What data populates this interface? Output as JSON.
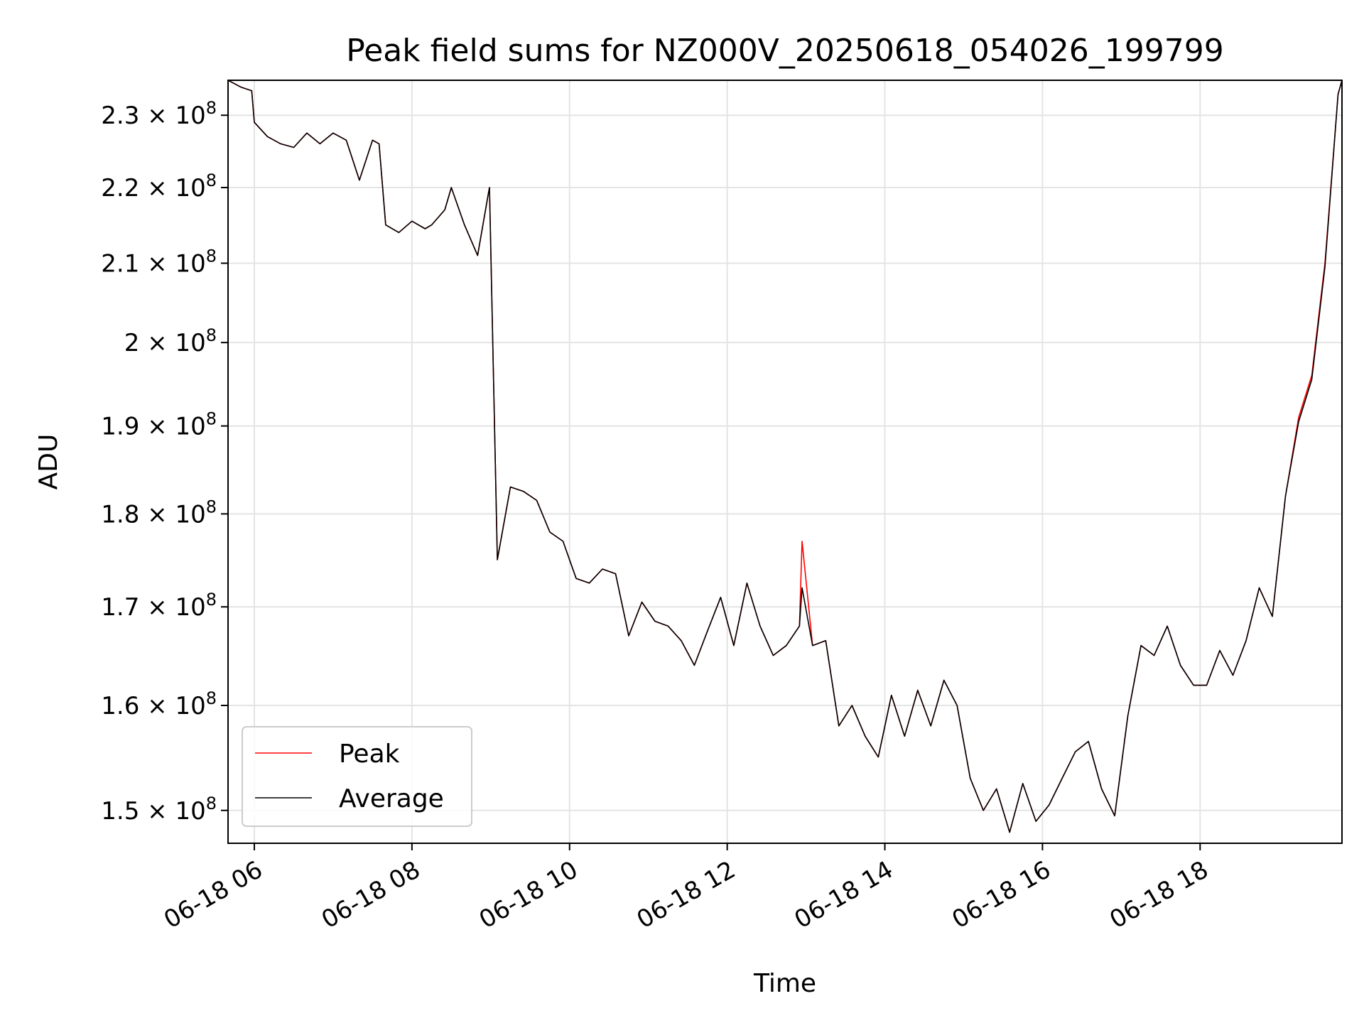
{
  "chart_data": {
    "type": "line",
    "title": "Peak field sums for NZ000V_20250618_054026_199799",
    "xlabel": "Time",
    "ylabel": "ADU",
    "x_scale": "time",
    "y_scale": "log",
    "xlim": [
      "06-18 05:40",
      "06-18 19:48"
    ],
    "ylim": [
      147000000,
      235000000
    ],
    "x_ticks": [
      {
        "value": "06-18 06:00",
        "label": "06-18 06"
      },
      {
        "value": "06-18 08:00",
        "label": "06-18 08"
      },
      {
        "value": "06-18 10:00",
        "label": "06-18 10"
      },
      {
        "value": "06-18 12:00",
        "label": "06-18 12"
      },
      {
        "value": "06-18 14:00",
        "label": "06-18 14"
      },
      {
        "value": "06-18 16:00",
        "label": "06-18 16"
      },
      {
        "value": "06-18 18:00",
        "label": "06-18 18"
      }
    ],
    "y_ticks": [
      {
        "value": 150000000,
        "mantissa": "1.5",
        "exp": "8"
      },
      {
        "value": 160000000,
        "mantissa": "1.6",
        "exp": "8"
      },
      {
        "value": 170000000,
        "mantissa": "1.7",
        "exp": "8"
      },
      {
        "value": 180000000,
        "mantissa": "1.8",
        "exp": "8"
      },
      {
        "value": 190000000,
        "mantissa": "1.9",
        "exp": "8"
      },
      {
        "value": 200000000,
        "mantissa": "2",
        "exp": "8"
      },
      {
        "value": 210000000,
        "mantissa": "2.1",
        "exp": "8"
      },
      {
        "value": 220000000,
        "mantissa": "2.2",
        "exp": "8"
      },
      {
        "value": 230000000,
        "mantissa": "2.3",
        "exp": "8"
      }
    ],
    "y_tick_base": "10",
    "y_tick_times": "×",
    "grid": true,
    "legend_position": "lower-left",
    "series": [
      {
        "name": "Peak",
        "color": "#ff0000",
        "x": [
          "06-18 05:40",
          "06-18 05:50",
          "06-18 05:58",
          "06-18 06:00",
          "06-18 06:10",
          "06-18 06:20",
          "06-18 06:30",
          "06-18 06:40",
          "06-18 06:50",
          "06-18 07:00",
          "06-18 07:10",
          "06-18 07:20",
          "06-18 07:30",
          "06-18 07:35",
          "06-18 07:40",
          "06-18 07:50",
          "06-18 08:00",
          "06-18 08:10",
          "06-18 08:15",
          "06-18 08:25",
          "06-18 08:30",
          "06-18 08:40",
          "06-18 08:50",
          "06-18 08:58",
          "06-18 08:59",
          "06-18 09:05",
          "06-18 09:15",
          "06-18 09:25",
          "06-18 09:35",
          "06-18 09:45",
          "06-18 09:55",
          "06-18 10:05",
          "06-18 10:15",
          "06-18 10:25",
          "06-18 10:35",
          "06-18 10:45",
          "06-18 10:55",
          "06-18 11:05",
          "06-18 11:15",
          "06-18 11:25",
          "06-18 11:35",
          "06-18 11:45",
          "06-18 11:55",
          "06-18 12:05",
          "06-18 12:15",
          "06-18 12:25",
          "06-18 12:35",
          "06-18 12:45",
          "06-18 12:55",
          "06-18 12:57",
          "06-18 13:05",
          "06-18 13:15",
          "06-18 13:25",
          "06-18 13:35",
          "06-18 13:45",
          "06-18 13:55",
          "06-18 14:05",
          "06-18 14:15",
          "06-18 14:25",
          "06-18 14:35",
          "06-18 14:45",
          "06-18 14:55",
          "06-18 15:05",
          "06-18 15:15",
          "06-18 15:25",
          "06-18 15:35",
          "06-18 15:45",
          "06-18 15:55",
          "06-18 16:05",
          "06-18 16:15",
          "06-18 16:25",
          "06-18 16:35",
          "06-18 16:45",
          "06-18 16:55",
          "06-18 17:05",
          "06-18 17:15",
          "06-18 17:25",
          "06-18 17:35",
          "06-18 17:45",
          "06-18 17:55",
          "06-18 18:05",
          "06-18 18:15",
          "06-18 18:25",
          "06-18 18:35",
          "06-18 18:45",
          "06-18 18:55",
          "06-18 19:05",
          "06-18 19:15",
          "06-18 19:25",
          "06-18 19:35",
          "06-18 19:45",
          "06-18 19:48"
        ],
        "y": [
          235000000,
          234000000,
          233500000,
          229000000,
          227000000,
          226000000,
          225500000,
          227500000,
          226000000,
          227500000,
          226500000,
          221000000,
          226500000,
          226000000,
          215000000,
          214000000,
          215500000,
          214500000,
          215000000,
          217000000,
          220000000,
          215000000,
          211000000,
          219000000,
          220000000,
          175000000,
          183000000,
          182500000,
          181500000,
          178000000,
          177000000,
          173000000,
          172500000,
          174000000,
          173500000,
          167000000,
          170500000,
          168500000,
          168000000,
          166500000,
          164000000,
          167500000,
          171000000,
          166000000,
          172500000,
          168000000,
          165000000,
          166000000,
          168000000,
          177000000,
          166000000,
          166500000,
          158000000,
          160000000,
          157000000,
          155000000,
          161000000,
          157000000,
          161500000,
          158000000,
          162500000,
          160000000,
          153000000,
          150000000,
          152000000,
          148000000,
          152500000,
          149000000,
          150500000,
          153000000,
          155500000,
          156500000,
          152000000,
          149500000,
          159000000,
          166000000,
          165000000,
          168000000,
          164000000,
          162000000,
          162000000,
          165500000,
          163000000,
          166500000,
          172000000,
          169000000,
          182000000,
          191000000,
          196000000,
          210000000,
          233000000,
          235000000
        ]
      },
      {
        "name": "Average",
        "color": "#000000",
        "x": [
          "06-18 05:40",
          "06-18 05:50",
          "06-18 05:58",
          "06-18 06:00",
          "06-18 06:10",
          "06-18 06:20",
          "06-18 06:30",
          "06-18 06:40",
          "06-18 06:50",
          "06-18 07:00",
          "06-18 07:10",
          "06-18 07:20",
          "06-18 07:30",
          "06-18 07:35",
          "06-18 07:40",
          "06-18 07:50",
          "06-18 08:00",
          "06-18 08:10",
          "06-18 08:15",
          "06-18 08:25",
          "06-18 08:30",
          "06-18 08:40",
          "06-18 08:50",
          "06-18 08:58",
          "06-18 08:59",
          "06-18 09:05",
          "06-18 09:15",
          "06-18 09:25",
          "06-18 09:35",
          "06-18 09:45",
          "06-18 09:55",
          "06-18 10:05",
          "06-18 10:15",
          "06-18 10:25",
          "06-18 10:35",
          "06-18 10:45",
          "06-18 10:55",
          "06-18 11:05",
          "06-18 11:15",
          "06-18 11:25",
          "06-18 11:35",
          "06-18 11:45",
          "06-18 11:55",
          "06-18 12:05",
          "06-18 12:15",
          "06-18 12:25",
          "06-18 12:35",
          "06-18 12:45",
          "06-18 12:55",
          "06-18 12:57",
          "06-18 13:05",
          "06-18 13:15",
          "06-18 13:25",
          "06-18 13:35",
          "06-18 13:45",
          "06-18 13:55",
          "06-18 14:05",
          "06-18 14:15",
          "06-18 14:25",
          "06-18 14:35",
          "06-18 14:45",
          "06-18 14:55",
          "06-18 15:05",
          "06-18 15:15",
          "06-18 15:25",
          "06-18 15:35",
          "06-18 15:45",
          "06-18 15:55",
          "06-18 16:05",
          "06-18 16:15",
          "06-18 16:25",
          "06-18 16:35",
          "06-18 16:45",
          "06-18 16:55",
          "06-18 17:05",
          "06-18 17:15",
          "06-18 17:25",
          "06-18 17:35",
          "06-18 17:45",
          "06-18 17:55",
          "06-18 18:05",
          "06-18 18:15",
          "06-18 18:25",
          "06-18 18:35",
          "06-18 18:45",
          "06-18 18:55",
          "06-18 19:05",
          "06-18 19:15",
          "06-18 19:25",
          "06-18 19:35",
          "06-18 19:45",
          "06-18 19:48"
        ],
        "y": [
          235000000,
          234000000,
          233500000,
          229000000,
          227000000,
          226000000,
          225500000,
          227500000,
          226000000,
          227500000,
          226500000,
          221000000,
          226500000,
          226000000,
          215000000,
          214000000,
          215500000,
          214500000,
          215000000,
          217000000,
          220000000,
          215000000,
          211000000,
          219000000,
          220000000,
          175000000,
          183000000,
          182500000,
          181500000,
          178000000,
          177000000,
          173000000,
          172500000,
          174000000,
          173500000,
          167000000,
          170500000,
          168500000,
          168000000,
          166500000,
          164000000,
          167500000,
          171000000,
          166000000,
          172500000,
          168000000,
          165000000,
          166000000,
          168000000,
          172000000,
          166000000,
          166500000,
          158000000,
          160000000,
          157000000,
          155000000,
          161000000,
          157000000,
          161500000,
          158000000,
          162500000,
          160000000,
          153000000,
          150000000,
          152000000,
          148000000,
          152500000,
          149000000,
          150500000,
          153000000,
          155500000,
          156500000,
          152000000,
          149500000,
          159000000,
          166000000,
          165000000,
          168000000,
          164000000,
          162000000,
          162000000,
          165500000,
          163000000,
          166500000,
          172000000,
          169000000,
          182000000,
          190500000,
          195500000,
          209500000,
          233000000,
          235000000
        ]
      }
    ]
  }
}
